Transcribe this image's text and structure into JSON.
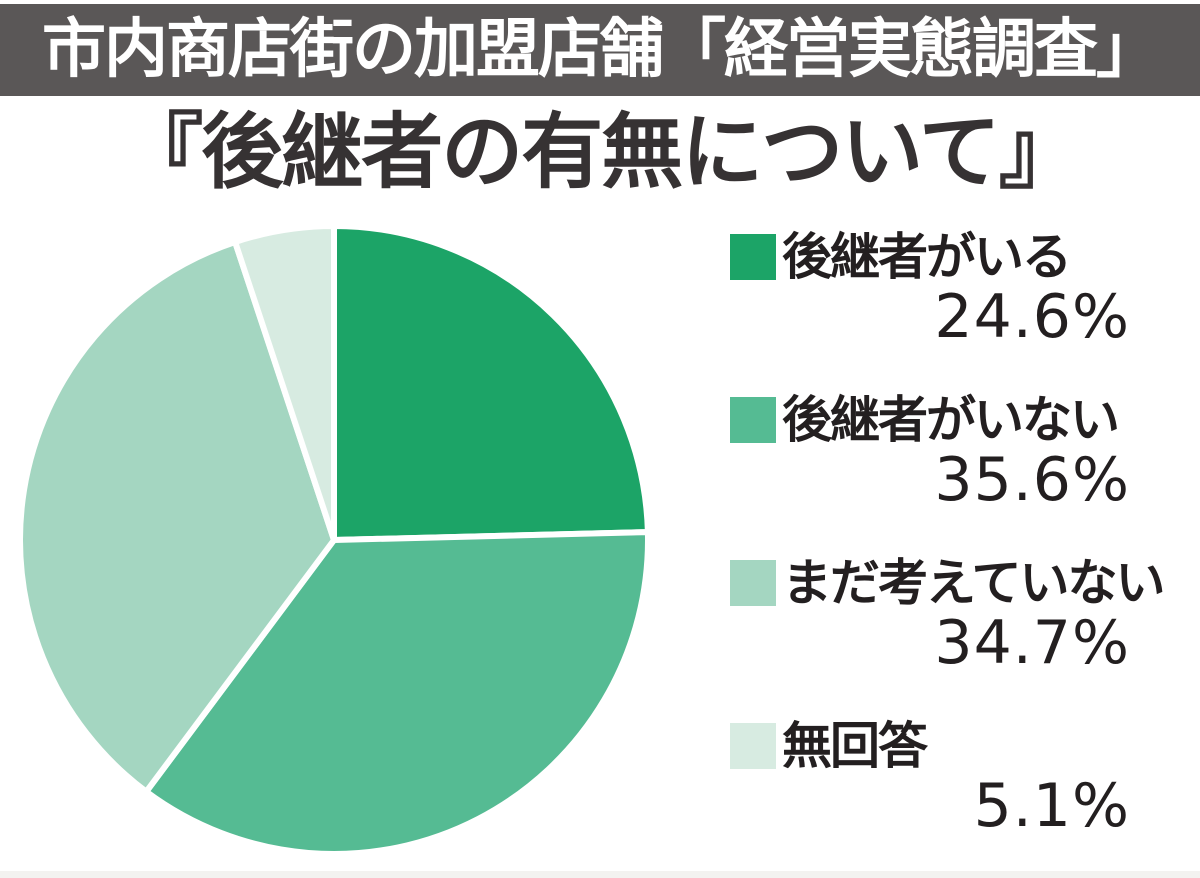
{
  "header": {
    "banner_title": "市内商店街の加盟店舗「経営実態調査」"
  },
  "chart_data": {
    "type": "pie",
    "title": "『後継者の有無について』",
    "start_angle_deg": 0,
    "direction": "clockwise",
    "legend_position": "right",
    "total": 100.0,
    "slices": [
      {
        "label": "後継者がいる",
        "value": 24.6,
        "percent_label": "24.6%",
        "color": "#1CA467"
      },
      {
        "label": "後継者がいない",
        "value": 35.6,
        "percent_label": "35.6%",
        "color": "#55BB93"
      },
      {
        "label": "まだ考えていない",
        "value": 34.7,
        "percent_label": "34.7%",
        "color": "#A4D6C1"
      },
      {
        "label": "無回答",
        "value": 5.1,
        "percent_label": "5.1%",
        "color": "#D7EBE1"
      }
    ]
  },
  "colors": {
    "banner_bg": "#5A5757",
    "banner_text": "#FFFFFF",
    "title_text": "#363233",
    "legend_text": "#231F20",
    "separator": "#FFFFFF",
    "bottom_strip": "#F3F2F0"
  }
}
